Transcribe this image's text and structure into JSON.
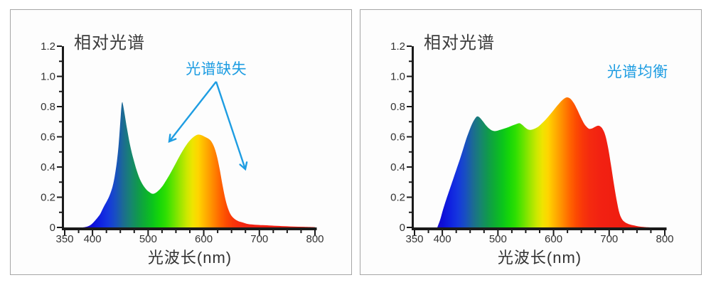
{
  "page": {
    "background": "#ffffff",
    "panel_background": "#fdfdfd",
    "panel_border_color": "#a6a6a6"
  },
  "colors": {
    "annotation_blue": "#1E9DE2",
    "axis": "#1a1a1a",
    "tick_text": "#333333",
    "title_text": "#3c3c3c"
  },
  "spectrum_gradient": [
    {
      "wl": 385,
      "color": "#2209C8"
    },
    {
      "wl": 400,
      "color": "#0E0ED8"
    },
    {
      "wl": 415,
      "color": "#1023E0"
    },
    {
      "wl": 428,
      "color": "#1537DE"
    },
    {
      "wl": 442,
      "color": "#1850C0"
    },
    {
      "wl": 455,
      "color": "#1C6B92"
    },
    {
      "wl": 468,
      "color": "#178372"
    },
    {
      "wl": 482,
      "color": "#109A4C"
    },
    {
      "wl": 495,
      "color": "#0DAF31"
    },
    {
      "wl": 508,
      "color": "#0BC41C"
    },
    {
      "wl": 520,
      "color": "#16D609"
    },
    {
      "wl": 532,
      "color": "#2FDF02"
    },
    {
      "wl": 545,
      "color": "#63E400"
    },
    {
      "wl": 558,
      "color": "#9CE600"
    },
    {
      "wl": 570,
      "color": "#CDE800"
    },
    {
      "wl": 580,
      "color": "#EFE400"
    },
    {
      "wl": 590,
      "color": "#FFD500"
    },
    {
      "wl": 600,
      "color": "#FFB900"
    },
    {
      "wl": 610,
      "color": "#FF9D00"
    },
    {
      "wl": 620,
      "color": "#FF8000"
    },
    {
      "wl": 630,
      "color": "#FF6300"
    },
    {
      "wl": 641,
      "color": "#FC4A02"
    },
    {
      "wl": 652,
      "color": "#F83709"
    },
    {
      "wl": 665,
      "color": "#F42A0F"
    },
    {
      "wl": 685,
      "color": "#F22112"
    },
    {
      "wl": 720,
      "color": "#EF1D10"
    },
    {
      "wl": 800,
      "color": "#ED1B0E"
    }
  ],
  "chart_data": [
    {
      "type": "area",
      "title": "相对光谱",
      "xlabel": "光波长(nm)",
      "ylabel": "",
      "xlim": [
        350,
        800
      ],
      "ylim": [
        0,
        1.2
      ],
      "x_major_ticks": [
        350,
        400,
        500,
        600,
        700,
        800
      ],
      "x_major_labels": [
        "350",
        "400",
        "500",
        "600",
        "700",
        "800"
      ],
      "x_minor_step": 25,
      "y_major_ticks": [
        0,
        0.2,
        0.4,
        0.6,
        0.8,
        1.0,
        1.2
      ],
      "y_major_labels": [
        "0",
        "0.2",
        "0.4",
        "0.6",
        "0.8",
        "1.0",
        "1.2"
      ],
      "y_minor_step": 0.1,
      "grid": false,
      "annotation": {
        "text": "光谱缺失",
        "pos_wl": 622.5,
        "pos_v": 1.049,
        "arrows": [
          {
            "from": [
              622.3,
              0.965
            ],
            "to": [
              537.9,
              0.569
            ]
          },
          {
            "from": [
              622.3,
              0.965
            ],
            "to": [
              674.7,
              0.386
            ]
          }
        ]
      },
      "series": [
        {
          "name": "spectrum",
          "points": [
            [
              383,
              0
            ],
            [
              390,
              0.005
            ],
            [
              396,
              0.015
            ],
            [
              402,
              0.035
            ],
            [
              408,
              0.06
            ],
            [
              414,
              0.09
            ],
            [
              420,
              0.135
            ],
            [
              426,
              0.175
            ],
            [
              431,
              0.215
            ],
            [
              436,
              0.27
            ],
            [
              440,
              0.34
            ],
            [
              444,
              0.44
            ],
            [
              447,
              0.55
            ],
            [
              450,
              0.7
            ],
            [
              452,
              0.8
            ],
            [
              453.5,
              0.83
            ],
            [
              455,
              0.81
            ],
            [
              458,
              0.745
            ],
            [
              462,
              0.655
            ],
            [
              467,
              0.555
            ],
            [
              472,
              0.475
            ],
            [
              478,
              0.395
            ],
            [
              484,
              0.33
            ],
            [
              490,
              0.285
            ],
            [
              497,
              0.25
            ],
            [
              503,
              0.232
            ],
            [
              508,
              0.223
            ],
            [
              513,
              0.228
            ],
            [
              519,
              0.245
            ],
            [
              526,
              0.275
            ],
            [
              533,
              0.315
            ],
            [
              541,
              0.365
            ],
            [
              549,
              0.42
            ],
            [
              557,
              0.475
            ],
            [
              565,
              0.525
            ],
            [
              573,
              0.567
            ],
            [
              581,
              0.597
            ],
            [
              589,
              0.614
            ],
            [
              596,
              0.611
            ],
            [
              603,
              0.598
            ],
            [
              609,
              0.586
            ],
            [
              614,
              0.567
            ],
            [
              619,
              0.53
            ],
            [
              624,
              0.468
            ],
            [
              629,
              0.38
            ],
            [
              634,
              0.275
            ],
            [
              639,
              0.185
            ],
            [
              644,
              0.122
            ],
            [
              649,
              0.082
            ],
            [
              655,
              0.058
            ],
            [
              662,
              0.042
            ],
            [
              670,
              0.033
            ],
            [
              680,
              0.022
            ],
            [
              692,
              0.018
            ],
            [
              706,
              0.015
            ],
            [
              722,
              0.012
            ],
            [
              740,
              0.009
            ],
            [
              760,
              0.006
            ],
            [
              780,
              0.004
            ],
            [
              800,
              0.002
            ]
          ]
        }
      ]
    },
    {
      "type": "area",
      "title": "相对光谱",
      "xlabel": "光波长(nm)",
      "ylabel": "",
      "xlim": [
        350,
        800
      ],
      "ylim": [
        0,
        1.2
      ],
      "x_major_ticks": [
        350,
        400,
        500,
        600,
        700,
        800
      ],
      "x_major_labels": [
        "350",
        "400",
        "500",
        "600",
        "700",
        "800"
      ],
      "x_minor_step": 25,
      "y_major_ticks": [
        0,
        0.2,
        0.4,
        0.6,
        0.8,
        1.0,
        1.2
      ],
      "y_major_labels": [
        "0",
        "0.2",
        "0.4",
        "0.6",
        "0.8",
        "1.0",
        "1.2"
      ],
      "y_minor_step": 0.1,
      "grid": false,
      "annotation": {
        "text": "光谱均衡",
        "pos_wl": 751,
        "pos_v": 1.031,
        "arrows": []
      },
      "series": [
        {
          "name": "spectrum",
          "points": [
            [
              391,
              0
            ],
            [
              396,
              0.05
            ],
            [
              401,
              0.115
            ],
            [
              407,
              0.185
            ],
            [
              413,
              0.25
            ],
            [
              419,
              0.315
            ],
            [
              425,
              0.38
            ],
            [
              431,
              0.445
            ],
            [
              437,
              0.515
            ],
            [
              443,
              0.585
            ],
            [
              449,
              0.645
            ],
            [
              454,
              0.69
            ],
            [
              459,
              0.722
            ],
            [
              463,
              0.735
            ],
            [
              467,
              0.728
            ],
            [
              472,
              0.707
            ],
            [
              478,
              0.678
            ],
            [
              484,
              0.655
            ],
            [
              490,
              0.641
            ],
            [
              496,
              0.638
            ],
            [
              503,
              0.645
            ],
            [
              511,
              0.654
            ],
            [
              519,
              0.664
            ],
            [
              527,
              0.676
            ],
            [
              534,
              0.686
            ],
            [
              539,
              0.69
            ],
            [
              544,
              0.678
            ],
            [
              549,
              0.661
            ],
            [
              554,
              0.649
            ],
            [
              559,
              0.646
            ],
            [
              565,
              0.652
            ],
            [
              572,
              0.666
            ],
            [
              579,
              0.689
            ],
            [
              587,
              0.719
            ],
            [
              595,
              0.753
            ],
            [
              603,
              0.79
            ],
            [
              611,
              0.825
            ],
            [
              618,
              0.85
            ],
            [
              624,
              0.861
            ],
            [
              630,
              0.853
            ],
            [
              636,
              0.826
            ],
            [
              642,
              0.785
            ],
            [
              648,
              0.737
            ],
            [
              654,
              0.693
            ],
            [
              659,
              0.668
            ],
            [
              664,
              0.653
            ],
            [
              669,
              0.655
            ],
            [
              674,
              0.665
            ],
            [
              679,
              0.673
            ],
            [
              683,
              0.671
            ],
            [
              688,
              0.653
            ],
            [
              693,
              0.611
            ],
            [
              698,
              0.53
            ],
            [
              703,
              0.42
            ],
            [
              708,
              0.3
            ],
            [
              713,
              0.19
            ],
            [
              718,
              0.1
            ],
            [
              723,
              0.055
            ],
            [
              729,
              0.033
            ],
            [
              737,
              0.02
            ],
            [
              746,
              0.012
            ],
            [
              756,
              0.005
            ],
            [
              766,
              0.002
            ],
            [
              775,
              0
            ]
          ]
        }
      ]
    }
  ]
}
